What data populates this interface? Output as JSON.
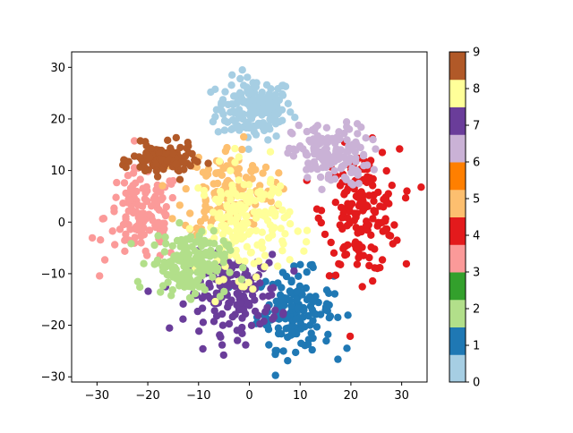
{
  "chart_data": {
    "type": "scatter",
    "title": "",
    "xlabel": "",
    "ylabel": "",
    "xlim": [
      -35,
      35
    ],
    "ylim": [
      -31,
      33
    ],
    "x_ticks": [
      -30,
      -20,
      -10,
      0,
      10,
      20,
      30
    ],
    "y_ticks": [
      -30,
      -20,
      -10,
      0,
      10,
      20,
      30
    ],
    "grid": false,
    "colorbar": {
      "range": [
        0,
        9
      ],
      "ticks": [
        0,
        1,
        2,
        3,
        4,
        5,
        6,
        7,
        8,
        9
      ],
      "colors": [
        "#a6cee3",
        "#1f78b4",
        "#b2df8a",
        "#33a02c",
        "#fb9a99",
        "#e31a1c",
        "#fdbf6f",
        "#ff7f00",
        "#cab2d6",
        "#6a3d9a",
        "#ffff99",
        "#b15928"
      ]
    },
    "clusters": [
      {
        "label": 0,
        "center": [
          1,
          22
        ],
        "spread": [
          5,
          4
        ],
        "count": 170
      },
      {
        "label": 1,
        "center": [
          9,
          -17
        ],
        "spread": [
          5,
          5
        ],
        "count": 150
      },
      {
        "label": 3,
        "center": [
          -21,
          1
        ],
        "spread": [
          5,
          6
        ],
        "count": 130
      },
      {
        "label": 4,
        "center": [
          22,
          2
        ],
        "spread": [
          5,
          8
        ],
        "count": 170
      },
      {
        "label": 5,
        "center": [
          -4,
          6
        ],
        "spread": [
          6,
          6
        ],
        "count": 140
      },
      {
        "label": 6,
        "center": [
          16,
          13
        ],
        "spread": [
          5,
          4
        ],
        "count": 150
      },
      {
        "label": 7,
        "center": [
          -3,
          -14
        ],
        "spread": [
          6,
          5
        ],
        "count": 170
      },
      {
        "label": 8,
        "center": [
          -1,
          0
        ],
        "spread": [
          6,
          7
        ],
        "count": 180
      },
      {
        "label": 9,
        "center": [
          -17,
          12
        ],
        "spread": [
          4,
          2
        ],
        "count": 120
      },
      {
        "label": 2,
        "center": [
          -12,
          -8
        ],
        "spread": [
          5,
          4
        ],
        "count": 160
      }
    ]
  }
}
